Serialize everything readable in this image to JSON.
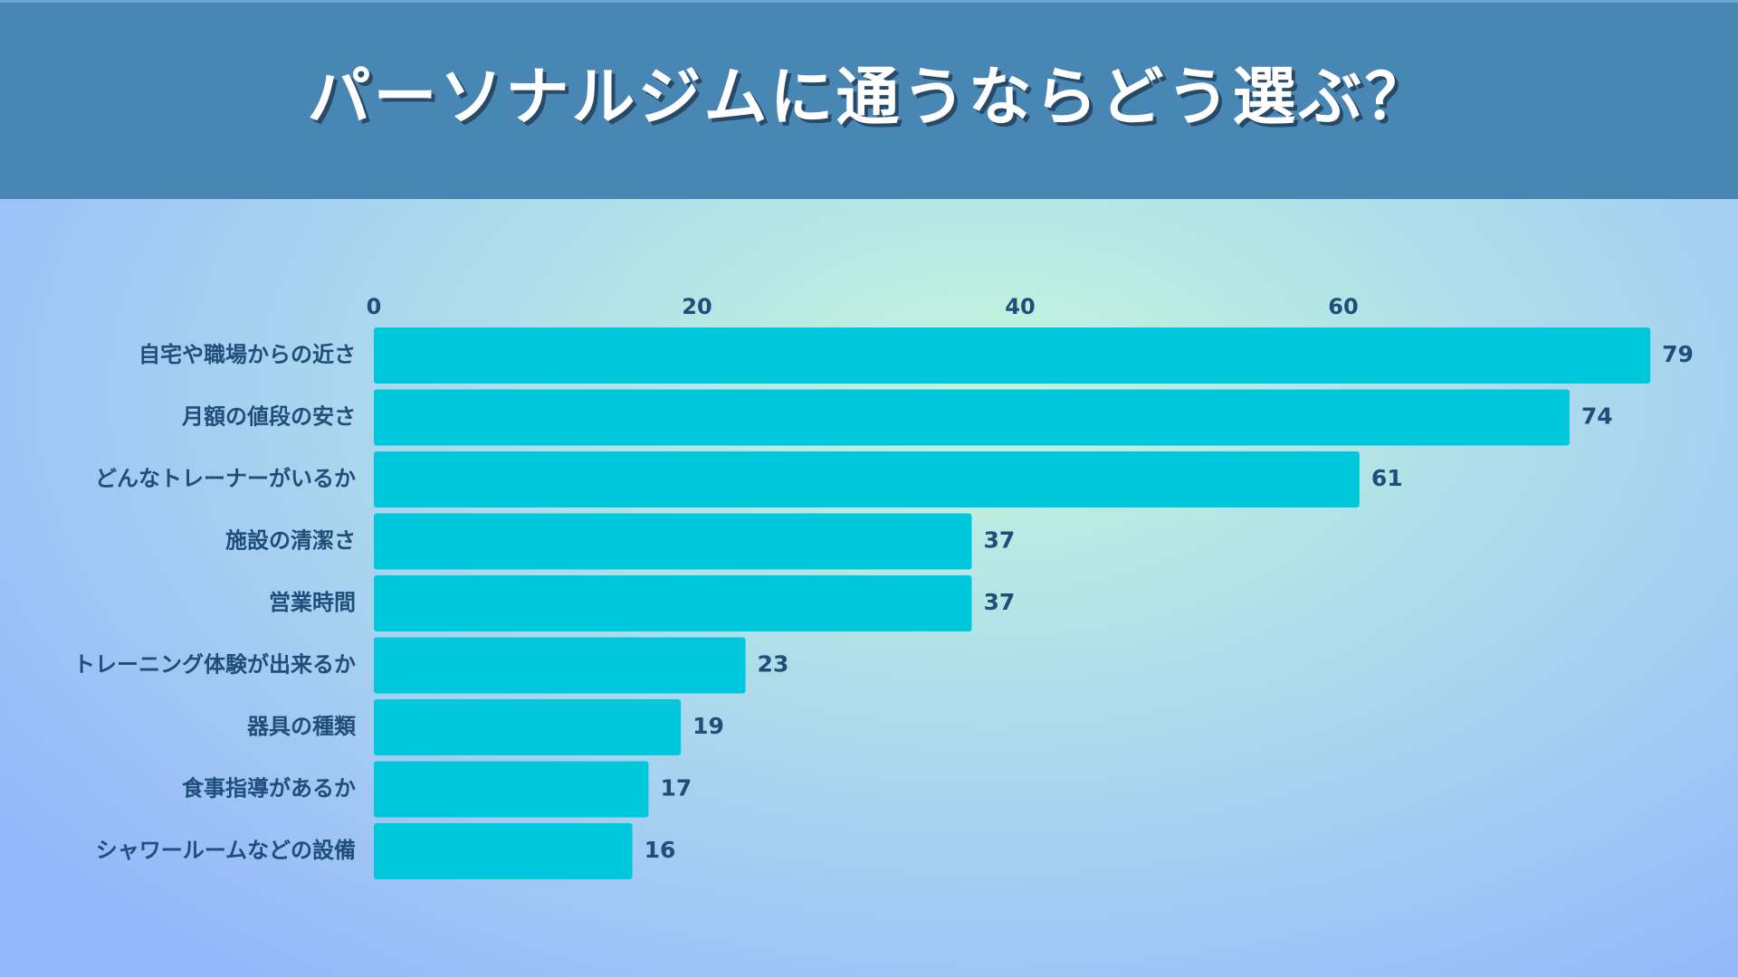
{
  "header": {
    "title": "パーソナルジムに通うならどう選ぶ？"
  },
  "colors": {
    "header_bg": "#4886b4",
    "title_text": "#ffffff",
    "bar": "#00c8dc",
    "label_text": "#1f4e79"
  },
  "chart_data": {
    "type": "bar",
    "orientation": "horizontal",
    "title": "パーソナルジムに通うならどう選ぶ？",
    "categories": [
      "自宅や職場からの近さ",
      "月額の値段の安さ",
      "どんなトレーナーがいるか",
      "施設の清潔さ",
      "営業時間",
      "トレーニング体験が出来るか",
      "器具の種類",
      "食事指導があるか",
      "シャワールームなどの設備"
    ],
    "values": [
      79,
      74,
      61,
      37,
      37,
      23,
      19,
      17,
      16
    ],
    "x_ticks": [
      0,
      20,
      40,
      60
    ],
    "xlim": [
      0,
      79
    ],
    "axis_position": "top",
    "data_labels": true,
    "grid": false,
    "xlabel": "",
    "ylabel": ""
  }
}
